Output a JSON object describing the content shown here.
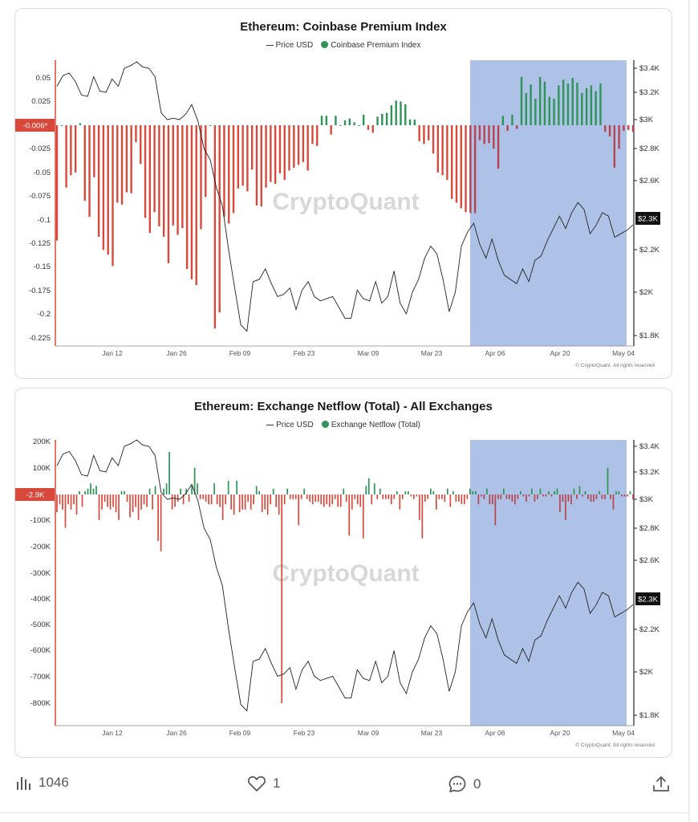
{
  "charts": [
    {
      "title": "Ethereum: Coinbase Premium Index",
      "legend_price": "Price USD",
      "legend_series": "Coinbase Premium Index",
      "left_ticks": [
        "0.05",
        "0.025",
        "0",
        "-0.025",
        "-0.05",
        "-0.075",
        "-0.1",
        "-0.125",
        "-0.15",
        "-0.175",
        "-0.2",
        "-0.225"
      ],
      "right_ticks": [
        "$3.4K",
        "$3.2K",
        "$3K",
        "$2.8K",
        "$2.6K",
        "$2.4K",
        "$2.2K",
        "$2K",
        "$1.8K"
      ],
      "x_ticks": [
        "Jan 12",
        "Jan 26",
        "Feb 09",
        "Feb 23",
        "Mar 09",
        "Mar 23",
        "Apr 06",
        "Apr 20",
        "May 04"
      ],
      "current_value_label": "-0.006*",
      "current_price_label": "$2.3K",
      "watermark": "CryptoQuant",
      "copyright": "© CryptoQuant. All rights reserved"
    },
    {
      "title": "Ethereum: Exchange Netflow (Total) - All Exchanges",
      "legend_price": "Price USD",
      "legend_series": "Exchange Netflow (Total)",
      "left_ticks": [
        "200K",
        "100K",
        "0",
        "-100K",
        "-200K",
        "-300K",
        "-400K",
        "-500K",
        "-600K",
        "-700K",
        "-800K"
      ],
      "right_ticks": [
        "$3.4K",
        "$3.2K",
        "$3K",
        "$2.8K",
        "$2.6K",
        "$2.4K",
        "$2.2K",
        "$2K",
        "$1.8K"
      ],
      "x_ticks": [
        "Jan 12",
        "Jan 26",
        "Feb 09",
        "Feb 23",
        "Mar 09",
        "Mar 23",
        "Apr 06",
        "Apr 20",
        "May 04"
      ],
      "current_value_label": "-2.9K",
      "current_price_label": "$2.3K",
      "watermark": "CryptoQuant",
      "copyright": "© CryptoQuant. All rights reserved"
    }
  ],
  "chart_data": [
    {
      "type": "bar",
      "title": "Ethereum: Coinbase Premium Index",
      "x_range": [
        "Jan 01",
        "May 06"
      ],
      "ylim_left": [
        -0.225,
        0.05
      ],
      "ylim_right": [
        1800,
        3400
      ],
      "highlight_range": [
        "Mar 30",
        "May 06"
      ],
      "colors": {
        "positive": "#2e9457",
        "negative": "#d9493b",
        "price": "#222222",
        "highlight": "#adc2e6"
      },
      "series": [
        {
          "name": "Coinbase Premium Index",
          "values": [
            -0.122,
            -0.0,
            -0.066,
            -0.053,
            -0.05,
            0.002,
            -0.08,
            -0.097,
            -0.055,
            -0.118,
            -0.132,
            -0.137,
            -0.149,
            -0.082,
            -0.084,
            -0.071,
            -0.072,
            -0.018,
            -0.041,
            -0.098,
            -0.114,
            -0.092,
            -0.107,
            -0.118,
            -0.146,
            -0.106,
            -0.116,
            -0.109,
            -0.152,
            -0.163,
            -0.169,
            -0.11,
            -0.076,
            -0.0,
            -0.215,
            -0.198,
            -0.097,
            -0.104,
            -0.093,
            -0.067,
            -0.064,
            -0.07,
            -0.047,
            -0.085,
            -0.086,
            -0.066,
            -0.06,
            -0.062,
            -0.051,
            -0.058,
            -0.048,
            -0.045,
            -0.042,
            -0.039,
            -0.048,
            -0.02,
            -0.022,
            0.01,
            0.01,
            -0.01,
            0.01,
            -0.0,
            0.005,
            0.007,
            0.003,
            -0.0,
            0.011,
            -0.005,
            -0.008,
            0.009,
            0.012,
            0.013,
            0.021,
            0.026,
            0.025,
            0.022,
            0.006,
            0.006,
            -0.017,
            -0.02,
            -0.016,
            -0.03,
            -0.05,
            -0.053,
            -0.058,
            -0.078,
            -0.082,
            -0.088,
            -0.092,
            -0.093,
            -0.093,
            -0.016,
            -0.02,
            -0.019,
            -0.025,
            -0.046,
            0.01,
            -0.006,
            0.011,
            -0.004,
            0.051,
            0.034,
            0.043,
            0.028,
            0.051,
            0.046,
            0.03,
            0.028,
            0.042,
            0.048,
            0.044,
            0.05,
            0.045,
            0.034,
            0.039,
            0.042,
            0.036,
            0.044,
            -0.007,
            -0.012,
            -0.045,
            -0.025,
            -0.006,
            -0.005,
            -0.007
          ]
        },
        {
          "name": "Price USD",
          "values": [
            3250,
            3340,
            3360,
            3290,
            3180,
            3170,
            3330,
            3210,
            3200,
            3310,
            3250,
            3400,
            3420,
            3450,
            3410,
            3400,
            3330,
            3050,
            3000,
            3010,
            3000,
            3040,
            3110,
            2990,
            2800,
            2730,
            2560,
            2450,
            2200,
            2020,
            1850,
            1820,
            2050,
            2060,
            2110,
            2040,
            1980,
            1990,
            2020,
            1920,
            2010,
            2050,
            1980,
            1960,
            1970,
            1980,
            1930,
            1880,
            1880,
            2010,
            1970,
            1960,
            2050,
            1950,
            1980,
            2100,
            1950,
            1900,
            2000,
            2060,
            2160,
            2220,
            2180,
            2060,
            1910,
            2000,
            2220,
            2300,
            2350,
            2230,
            2160,
            2260,
            2150,
            2080,
            2060,
            2040,
            2110,
            2050,
            2150,
            2170,
            2250,
            2320,
            2390,
            2320,
            2410,
            2470,
            2430,
            2290,
            2340,
            2410,
            2390,
            2270,
            2290,
            2310,
            2340
          ]
        }
      ]
    },
    {
      "type": "bar",
      "title": "Ethereum: Exchange Netflow (Total) - All Exchanges",
      "x_range": [
        "Jan 01",
        "May 06"
      ],
      "ylim_left": [
        -880000,
        220000
      ],
      "ylim_right": [
        1800,
        3400
      ],
      "highlight_range": [
        "Mar 30",
        "May 06"
      ],
      "colors": {
        "positive": "#2e9457",
        "negative": "#d9493b",
        "price": "#222222",
        "highlight": "#adc2e6"
      },
      "series": [
        {
          "name": "Exchange Netflow (Total)",
          "values": [
            -70000,
            -40000,
            -60000,
            -130000,
            -40000,
            -60000,
            -40000,
            -80000,
            10000,
            -50000,
            10000,
            20000,
            40000,
            20000,
            30000,
            -100000,
            -60000,
            -30000,
            -50000,
            -60000,
            -50000,
            -70000,
            -100000,
            10000,
            10000,
            -30000,
            -90000,
            -70000,
            -50000,
            -100000,
            -60000,
            -40000,
            -50000,
            20000,
            -60000,
            30000,
            -180000,
            -220000,
            20000,
            40000,
            160000,
            -60000,
            -50000,
            -30000,
            20000,
            -40000,
            20000,
            -30000,
            30000,
            100000,
            40000,
            -20000,
            -20000,
            -30000,
            -40000,
            -40000,
            40000,
            -40000,
            -50000,
            -100000,
            -40000,
            50000,
            -60000,
            -80000,
            50000,
            -70000,
            -60000,
            -60000,
            -30000,
            -60000,
            -40000,
            30000,
            10000,
            -70000,
            -60000,
            -80000,
            -40000,
            20000,
            -50000,
            -80000,
            -800000,
            -40000,
            20000,
            -20000,
            -20000,
            -20000,
            -120000,
            -20000,
            20000,
            -20000,
            -30000,
            -40000,
            -30000,
            -30000,
            -40000,
            -50000,
            -40000,
            -50000,
            -40000,
            -20000,
            -50000,
            -50000,
            20000,
            -30000,
            -160000,
            -60000,
            -20000,
            -40000,
            -50000,
            -170000,
            30000,
            60000,
            -40000,
            40000,
            -20000,
            20000,
            -20000,
            -20000,
            -20000,
            -40000,
            -20000,
            10000,
            -60000,
            -20000,
            10000,
            10000,
            -10000,
            -20000,
            -10000,
            -100000,
            -170000,
            -30000,
            -20000,
            20000,
            10000,
            -60000,
            -20000,
            -20000,
            -30000,
            20000,
            -50000,
            10000,
            -30000,
            -30000,
            -40000,
            -40000,
            -20000,
            20000,
            10000,
            10000,
            -40000,
            -10000,
            -20000,
            20000,
            -40000,
            -40000,
            -120000,
            -20000,
            -20000,
            20000,
            -20000,
            -20000,
            -30000,
            -40000,
            -20000,
            10000,
            -10000,
            -30000,
            -10000,
            20000,
            -30000,
            -20000,
            20000,
            -10000,
            -10000,
            10000,
            -10000,
            10000,
            20000,
            -70000,
            -30000,
            -100000,
            -30000,
            -40000,
            20000,
            -20000,
            30000,
            -10000,
            10000,
            -20000,
            -30000,
            -30000,
            -20000,
            10000,
            -20000,
            -20000,
            100000,
            -20000,
            -60000,
            10000,
            10000,
            -10000,
            -10000,
            -10000,
            10000,
            -20000
          ]
        },
        {
          "name": "Price USD",
          "values": [
            3250,
            3340,
            3360,
            3290,
            3180,
            3170,
            3330,
            3210,
            3200,
            3310,
            3250,
            3400,
            3420,
            3450,
            3410,
            3400,
            3330,
            3050,
            3000,
            3010,
            3000,
            3040,
            3110,
            2990,
            2800,
            2730,
            2560,
            2450,
            2200,
            2020,
            1850,
            1820,
            2050,
            2060,
            2110,
            2040,
            1980,
            1990,
            2020,
            1920,
            2010,
            2050,
            1980,
            1960,
            1970,
            1980,
            1930,
            1880,
            1880,
            2010,
            1970,
            1960,
            2050,
            1950,
            1980,
            2100,
            1950,
            1900,
            2000,
            2060,
            2160,
            2220,
            2180,
            2060,
            1910,
            2000,
            2220,
            2300,
            2350,
            2230,
            2160,
            2260,
            2150,
            2080,
            2060,
            2040,
            2110,
            2050,
            2150,
            2170,
            2250,
            2320,
            2390,
            2320,
            2410,
            2470,
            2430,
            2290,
            2340,
            2410,
            2390,
            2270,
            2290,
            2310,
            2340
          ]
        }
      ]
    }
  ],
  "footer": {
    "views_count": "1046",
    "likes_count": "1",
    "comments_count": "0"
  }
}
